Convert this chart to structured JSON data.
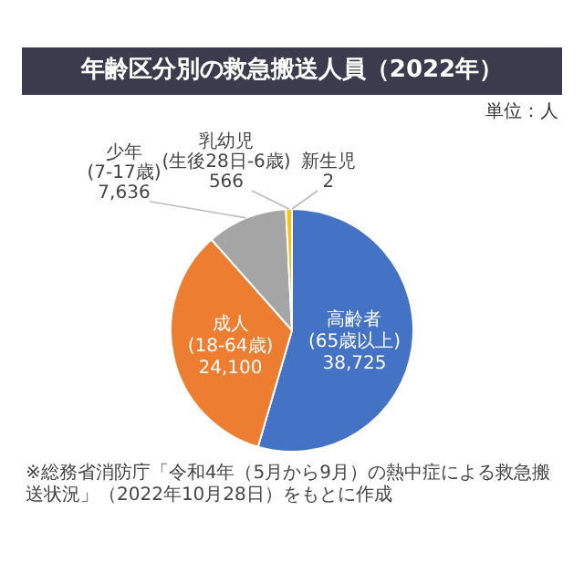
{
  "chart_data": {
    "type": "pie",
    "title": "年齢区分別の救急搬送人員（2022年）",
    "subtitle": "単位：人",
    "categories": [
      "高齢者\n(65歳以上)",
      "成人\n(18-64歳)",
      "少年\n(7-17歳)",
      "乳幼児\n(生後28日-6歳)",
      "新生児"
    ],
    "values": [
      38725,
      24100,
      7636,
      566,
      2
    ],
    "colors": [
      "#4472c4",
      "#ed7d31",
      "#a5a5a5",
      "#ffc000",
      "#5b9bd5"
    ],
    "value_labels": [
      "38,725",
      "24,100",
      "7,636",
      "566",
      "2"
    ],
    "legend": false,
    "annotations": [
      "※総務省消防庁「令和4年（5月から9月）の熱中症による救急搬送状況」（2022年10月28日）をもとに作成"
    ]
  }
}
